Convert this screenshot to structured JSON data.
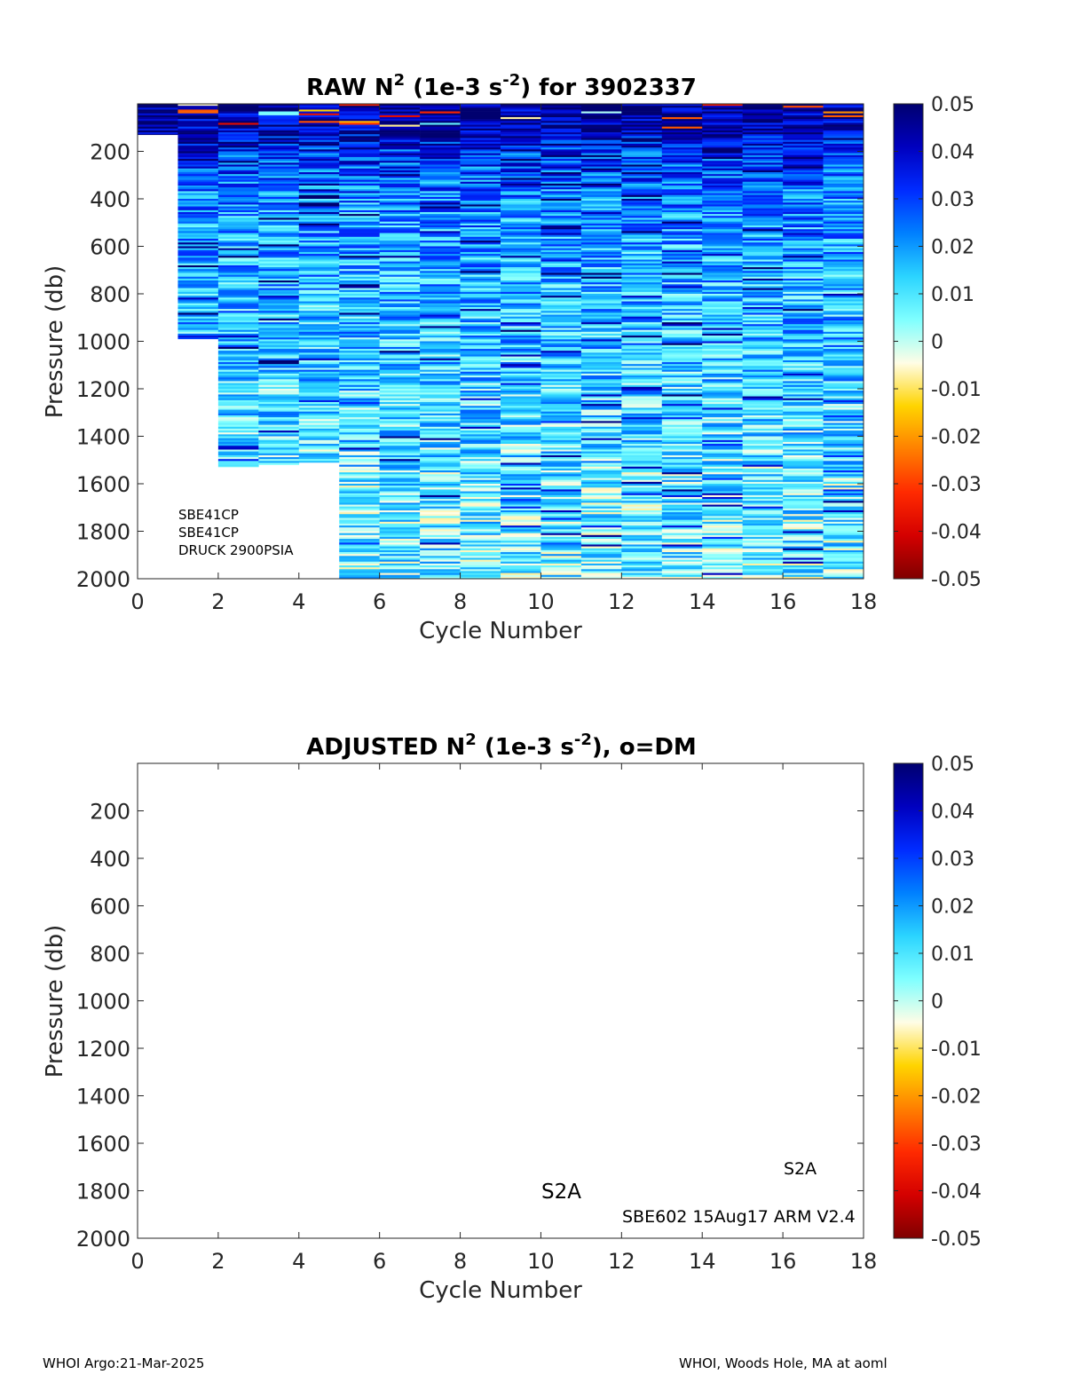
{
  "footer": {
    "left": "WHOI Argo:21-Mar-2025",
    "right": "WHOI, Woods Hole, MA at aoml"
  },
  "colors": {
    "colormap": [
      "#7f0000",
      "#d40000",
      "#ff2a00",
      "#ff7f00",
      "#ffd400",
      "#fffde6",
      "#7fffff",
      "#2bd4ff",
      "#0080ff",
      "#002bff",
      "#0000bf",
      "#00006f"
    ]
  },
  "chart_data": [
    {
      "type": "heatmap",
      "panel": "raw",
      "title_parts": [
        "RAW N",
        "2",
        " (1e-3 s",
        "-2",
        ") for 3902337"
      ],
      "xlabel": "Cycle Number",
      "ylabel": "Pressure (db)",
      "xlim": [
        0,
        18
      ],
      "ylim": [
        2000,
        0
      ],
      "y_reversed": true,
      "xticks": [
        0,
        2,
        4,
        6,
        8,
        10,
        12,
        14,
        16,
        18
      ],
      "yticks": [
        200,
        400,
        600,
        800,
        1000,
        1200,
        1400,
        1600,
        1800,
        2000
      ],
      "clim": [
        -0.05,
        0.05
      ],
      "colorbar_ticks": [
        "0.05",
        "0.04",
        "0.03",
        "0.02",
        "0.01",
        "0",
        "-0.01",
        "-0.02",
        "-0.03",
        "-0.04",
        "-0.05"
      ],
      "columns": [
        {
          "cycle": 0,
          "max_pressure": 130
        },
        {
          "cycle": 1,
          "max_pressure": 990
        },
        {
          "cycle": 2,
          "max_pressure": 1530
        },
        {
          "cycle": 3,
          "max_pressure": 1520
        },
        {
          "cycle": 4,
          "max_pressure": 1510
        },
        {
          "cycle": 5,
          "max_pressure": 2000
        },
        {
          "cycle": 6,
          "max_pressure": 2000
        },
        {
          "cycle": 7,
          "max_pressure": 2000
        },
        {
          "cycle": 8,
          "max_pressure": 2000
        },
        {
          "cycle": 9,
          "max_pressure": 2000
        },
        {
          "cycle": 10,
          "max_pressure": 2000
        },
        {
          "cycle": 11,
          "max_pressure": 2000
        },
        {
          "cycle": 12,
          "max_pressure": 2000
        },
        {
          "cycle": 13,
          "max_pressure": 2000
        },
        {
          "cycle": 14,
          "max_pressure": 2000
        },
        {
          "cycle": 15,
          "max_pressure": 2000
        },
        {
          "cycle": 16,
          "max_pressure": 2000
        },
        {
          "cycle": 17,
          "max_pressure": 2000
        }
      ],
      "value_profile": [
        {
          "pressure": 0,
          "value": 0.046
        },
        {
          "pressure": 100,
          "value": 0.044
        },
        {
          "pressure": 200,
          "value": 0.032
        },
        {
          "pressure": 400,
          "value": 0.022
        },
        {
          "pressure": 600,
          "value": 0.018
        },
        {
          "pressure": 800,
          "value": 0.016
        },
        {
          "pressure": 1000,
          "value": 0.015
        },
        {
          "pressure": 1200,
          "value": 0.012
        },
        {
          "pressure": 1400,
          "value": 0.01
        },
        {
          "pressure": 1600,
          "value": 0.008
        },
        {
          "pressure": 2000,
          "value": 0.007
        }
      ],
      "annotations": [
        "SBE41CP",
        "SBE41CP",
        "DRUCK 2900PSIA"
      ]
    },
    {
      "type": "heatmap",
      "panel": "adjusted",
      "title_parts": [
        "ADJUSTED N",
        "2",
        " (1e-3 s",
        "-2",
        "), o=DM"
      ],
      "xlabel": "Cycle Number",
      "ylabel": "Pressure (db)",
      "xlim": [
        0,
        18
      ],
      "ylim": [
        2000,
        0
      ],
      "y_reversed": true,
      "xticks": [
        0,
        2,
        4,
        6,
        8,
        10,
        12,
        14,
        16,
        18
      ],
      "yticks": [
        200,
        400,
        600,
        800,
        1000,
        1200,
        1400,
        1600,
        1800,
        2000
      ],
      "clim": [
        -0.05,
        0.05
      ],
      "colorbar_ticks": [
        "0.05",
        "0.04",
        "0.03",
        "0.02",
        "0.01",
        "0",
        "-0.01",
        "-0.02",
        "-0.03",
        "-0.04",
        "-0.05"
      ],
      "columns": [],
      "annotations": [
        "S2A",
        "S2A",
        "SBE602 15Aug17 ARM V2.4"
      ]
    }
  ]
}
